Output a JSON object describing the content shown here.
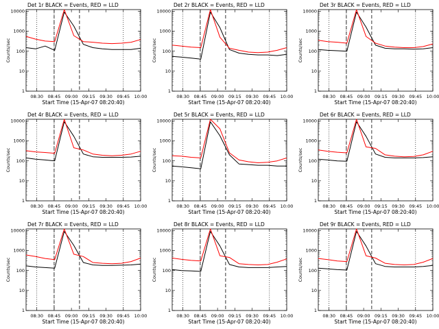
{
  "chart_data": [
    {
      "type": "line",
      "title": "Det 1r BLACK = Events, RED = LLD",
      "xlabel": "Start Time (15-Apr-07 08:20:40)",
      "ylabel": "Counts/sec",
      "x_ticks": [
        "08:30",
        "08:45",
        "09:00",
        "09:15",
        "09:30",
        "09:45",
        "10:00"
      ],
      "y_ticks": [
        "1",
        "10",
        "100",
        "1000",
        "10000"
      ],
      "yscale": "log",
      "ylim": [
        1,
        12000
      ],
      "markers": {
        "dotted_at": [
          "08:30",
          "08:45",
          "09:45"
        ],
        "dashed_at": [
          "08:45",
          "09:07"
        ]
      },
      "series": [
        {
          "name": "Events",
          "color": "#000000",
          "values": [
            150,
            130,
            180,
            110,
            9000,
            1800,
            220,
            150,
            130,
            120,
            120,
            120,
            140
          ]
        },
        {
          "name": "LLD",
          "color": "#ff0000",
          "values": [
            550,
            400,
            320,
            300,
            12000,
            600,
            300,
            280,
            250,
            240,
            250,
            280,
            380
          ]
        }
      ]
    },
    {
      "type": "line",
      "title": "Det 2r BLACK = Events, RED = LLD",
      "xlabel": "Start Time (15-Apr-07 08:20:40)",
      "ylabel": "Counts/sec",
      "x_ticks": [
        "08:30",
        "08:45",
        "09:00",
        "09:15",
        "09:30",
        "09:45",
        "10:00"
      ],
      "y_ticks": [
        "1",
        "10",
        "100",
        "1000",
        "10000"
      ],
      "yscale": "log",
      "ylim": [
        1,
        12000
      ],
      "markers": {
        "dotted_at": [
          "08:30",
          "08:45",
          "09:45"
        ],
        "dashed_at": [
          "08:45",
          "09:07"
        ]
      },
      "series": [
        {
          "name": "Events",
          "color": "#000000",
          "values": [
            55,
            50,
            45,
            40,
            9000,
            1500,
            120,
            80,
            70,
            65,
            65,
            60,
            70
          ]
        },
        {
          "name": "LLD",
          "color": "#ff0000",
          "values": [
            200,
            180,
            160,
            150,
            12000,
            500,
            140,
            110,
            90,
            85,
            90,
            110,
            150
          ]
        }
      ]
    },
    {
      "type": "line",
      "title": "Det 3r BLACK = Events, RED = LLD",
      "xlabel": "Start Time (15-Apr-07 08:20:40)",
      "ylabel": "Counts/sec",
      "x_ticks": [
        "08:30",
        "08:45",
        "09:00",
        "09:15",
        "09:30",
        "09:45",
        "10:00"
      ],
      "y_ticks": [
        "1",
        "10",
        "100",
        "1000",
        "10000"
      ],
      "yscale": "log",
      "ylim": [
        1,
        12000
      ],
      "markers": {
        "dotted_at": [
          "08:30",
          "08:45",
          "09:45"
        ],
        "dashed_at": [
          "08:45",
          "09:07"
        ]
      },
      "series": [
        {
          "name": "Events",
          "color": "#000000",
          "values": [
            120,
            110,
            105,
            100,
            9000,
            1600,
            200,
            140,
            130,
            130,
            125,
            130,
            150
          ]
        },
        {
          "name": "LLD",
          "color": "#ff0000",
          "values": [
            350,
            300,
            280,
            250,
            12000,
            550,
            250,
            180,
            160,
            150,
            150,
            170,
            230
          ]
        }
      ]
    },
    {
      "type": "line",
      "title": "Det 4r BLACK = Events, RED = LLD",
      "xlabel": "Start Time (15-Apr-07 08:20:40)",
      "ylabel": "Counts/sec",
      "x_ticks": [
        "08:30",
        "08:45",
        "09:00",
        "09:15",
        "09:30",
        "09:45",
        "10:00"
      ],
      "y_ticks": [
        "1",
        "10",
        "100",
        "1000",
        "10000"
      ],
      "yscale": "log",
      "ylim": [
        1,
        12000
      ],
      "markers": {
        "dotted_at": [
          "08:30",
          "08:45",
          "09:45"
        ],
        "dashed_at": [
          "08:45",
          "09:07"
        ]
      },
      "series": [
        {
          "name": "Events",
          "color": "#000000",
          "values": [
            140,
            120,
            110,
            100,
            9000,
            1700,
            220,
            160,
            150,
            150,
            150,
            155,
            170
          ]
        },
        {
          "name": "LLD",
          "color": "#ff0000",
          "values": [
            320,
            280,
            260,
            240,
            12000,
            450,
            350,
            220,
            190,
            180,
            190,
            220,
            300
          ]
        }
      ]
    },
    {
      "type": "line",
      "title": "Det 5r BLACK = Events, RED = LLD",
      "xlabel": "Start Time (15-Apr-07 08:20:40)",
      "ylabel": "Counts/sec",
      "x_ticks": [
        "08:30",
        "08:45",
        "09:00",
        "09:15",
        "09:30",
        "09:45",
        "10:00"
      ],
      "y_ticks": [
        "1",
        "10",
        "100",
        "1000",
        "10000"
      ],
      "yscale": "log",
      "ylim": [
        1,
        12000
      ],
      "markers": {
        "dotted_at": [
          "08:30",
          "08:45",
          "09:45"
        ],
        "dashed_at": [
          "08:45",
          "09:07"
        ]
      },
      "series": [
        {
          "name": "Events",
          "color": "#000000",
          "values": [
            55,
            50,
            45,
            40,
            9000,
            1800,
            200,
            70,
            65,
            60,
            60,
            55,
            55
          ]
        },
        {
          "name": "LLD",
          "color": "#ff0000",
          "values": [
            180,
            170,
            150,
            140,
            12000,
            4000,
            250,
            110,
            90,
            80,
            85,
            100,
            140
          ]
        }
      ]
    },
    {
      "type": "line",
      "title": "Det 6r BLACK = Events, RED = LLD",
      "xlabel": "Start Time (15-Apr-07 08:20:40)",
      "ylabel": "Counts/sec",
      "x_ticks": [
        "08:30",
        "08:45",
        "09:00",
        "09:15",
        "09:30",
        "09:45",
        "10:00"
      ],
      "y_ticks": [
        "1",
        "10",
        "100",
        "1000",
        "10000"
      ],
      "yscale": "log",
      "ylim": [
        1,
        12000
      ],
      "markers": {
        "dotted_at": [
          "08:30",
          "08:45",
          "09:45"
        ],
        "dashed_at": [
          "08:45",
          "09:07"
        ]
      },
      "series": [
        {
          "name": "Events",
          "color": "#000000",
          "values": [
            120,
            110,
            100,
            95,
            9000,
            1700,
            220,
            150,
            140,
            140,
            140,
            145,
            160
          ]
        },
        {
          "name": "LLD",
          "color": "#ff0000",
          "values": [
            350,
            300,
            270,
            250,
            12000,
            500,
            420,
            200,
            170,
            160,
            165,
            200,
            300
          ]
        }
      ]
    },
    {
      "type": "line",
      "title": "Det 7r BLACK = Events, RED = LLD",
      "xlabel": "Start Time (15-Apr-07 08:20:40)",
      "ylabel": "Counts/sec",
      "x_ticks": [
        "08:30",
        "08:45",
        "09:00",
        "09:15",
        "09:30",
        "09:45",
        "10:00"
      ],
      "y_ticks": [
        "1",
        "10",
        "100",
        "1000",
        "10000"
      ],
      "yscale": "log",
      "ylim": [
        1,
        12000
      ],
      "markers": {
        "dotted_at": [
          "08:30",
          "08:45",
          "09:45"
        ],
        "dashed_at": [
          "08:45",
          "09:07"
        ]
      },
      "series": [
        {
          "name": "Events",
          "color": "#000000",
          "values": [
            170,
            150,
            140,
            130,
            9000,
            1800,
            250,
            190,
            180,
            180,
            185,
            190,
            210
          ]
        },
        {
          "name": "LLD",
          "color": "#ff0000",
          "values": [
            600,
            500,
            400,
            350,
            12000,
            650,
            500,
            250,
            230,
            220,
            230,
            280,
            420
          ]
        }
      ]
    },
    {
      "type": "line",
      "title": "Det 8r BLACK = Events, RED = LLD",
      "xlabel": "Start Time (15-Apr-07 08:20:40)",
      "ylabel": "Counts/sec",
      "x_ticks": [
        "08:30",
        "08:45",
        "09:00",
        "09:15",
        "09:30",
        "09:45",
        "10:00"
      ],
      "y_ticks": [
        "1",
        "10",
        "100",
        "1000",
        "10000"
      ],
      "yscale": "log",
      "ylim": [
        1,
        12000
      ],
      "markers": {
        "dotted_at": [
          "08:30",
          "08:45",
          "09:45"
        ],
        "dashed_at": [
          "08:45",
          "09:07"
        ]
      },
      "series": [
        {
          "name": "Events",
          "color": "#000000",
          "values": [
            110,
            100,
            95,
            90,
            9000,
            1700,
            200,
            150,
            140,
            140,
            140,
            150,
            160
          ]
        },
        {
          "name": "LLD",
          "color": "#ff0000",
          "values": [
            420,
            360,
            320,
            300,
            12000,
            550,
            450,
            220,
            200,
            190,
            200,
            260,
            380
          ]
        }
      ]
    },
    {
      "type": "line",
      "title": "Det 9r BLACK = Events, RED = LLD",
      "xlabel": "Start Time (15-Apr-07 08:20:40)",
      "ylabel": "Counts/sec",
      "x_ticks": [
        "08:30",
        "08:45",
        "09:00",
        "09:15",
        "09:30",
        "09:45",
        "10:00"
      ],
      "y_ticks": [
        "1",
        "10",
        "100",
        "1000",
        "10000"
      ],
      "yscale": "log",
      "ylim": [
        1,
        12000
      ],
      "markers": {
        "dotted_at": [
          "08:30",
          "08:45",
          "09:45"
        ],
        "dashed_at": [
          "08:45",
          "09:07"
        ]
      },
      "series": [
        {
          "name": "Events",
          "color": "#000000",
          "values": [
            130,
            120,
            110,
            105,
            9000,
            1700,
            220,
            160,
            150,
            150,
            150,
            160,
            180
          ]
        },
        {
          "name": "LLD",
          "color": "#ff0000",
          "values": [
            400,
            350,
            300,
            280,
            12000,
            550,
            420,
            230,
            200,
            190,
            200,
            260,
            400
          ]
        }
      ]
    }
  ]
}
